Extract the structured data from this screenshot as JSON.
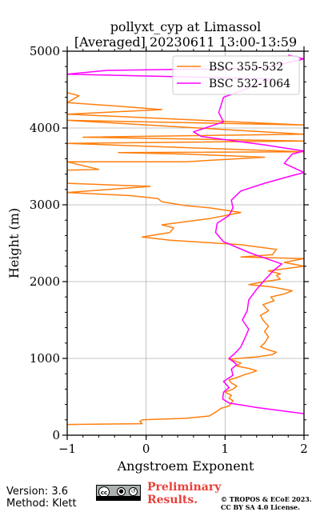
{
  "chart_data": {
    "type": "line",
    "title": "pollyxt_cyp at Limassol",
    "subtitle": "[Averaged] 20230611 13:00-13:59",
    "xlabel": "Angstroem Exponent",
    "ylabel": "Height (m)",
    "xlim": [
      -1,
      2
    ],
    "ylim": [
      0,
      5000
    ],
    "xticks": [
      "−1",
      "0",
      "1",
      "2"
    ],
    "yticks": [
      "0",
      "1000",
      "2000",
      "3000",
      "4000",
      "5000"
    ],
    "grid": true,
    "legend_position": "top-right",
    "series": [
      {
        "name": "BSC 355-532",
        "color": "#ff7f0e",
        "points": [
          [
            -1.0,
            140
          ],
          [
            -0.05,
            150
          ],
          [
            -0.08,
            180
          ],
          [
            -0.05,
            200
          ],
          [
            0.5,
            220
          ],
          [
            0.8,
            250
          ],
          [
            0.88,
            300
          ],
          [
            0.95,
            350
          ],
          [
            1.05,
            380
          ],
          [
            1.08,
            420
          ],
          [
            1.1,
            450
          ],
          [
            1.05,
            480
          ],
          [
            1.08,
            520
          ],
          [
            1.0,
            560
          ],
          [
            1.1,
            600
          ],
          [
            1.15,
            640
          ],
          [
            1.08,
            680
          ],
          [
            1.05,
            720
          ],
          [
            1.15,
            750
          ],
          [
            1.25,
            790
          ],
          [
            1.35,
            820
          ],
          [
            1.4,
            840
          ],
          [
            1.3,
            870
          ],
          [
            1.15,
            900
          ],
          [
            1.2,
            940
          ],
          [
            1.05,
            990
          ],
          [
            1.4,
            1020
          ],
          [
            1.6,
            1050
          ],
          [
            1.65,
            1080
          ],
          [
            1.55,
            1110
          ],
          [
            1.45,
            1150
          ],
          [
            1.5,
            1200
          ],
          [
            1.55,
            1280
          ],
          [
            1.5,
            1350
          ],
          [
            1.55,
            1420
          ],
          [
            1.48,
            1500
          ],
          [
            1.45,
            1560
          ],
          [
            1.55,
            1620
          ],
          [
            1.48,
            1700
          ],
          [
            1.62,
            1750
          ],
          [
            1.58,
            1800
          ],
          [
            1.75,
            1840
          ],
          [
            1.85,
            1880
          ],
          [
            1.6,
            1930
          ],
          [
            1.3,
            1960
          ],
          [
            1.5,
            2000
          ],
          [
            1.7,
            2030
          ],
          [
            1.65,
            2080
          ],
          [
            1.7,
            2100
          ],
          [
            1.55,
            2140
          ],
          [
            2.0,
            2200
          ],
          [
            1.75,
            2250
          ],
          [
            2.0,
            2300
          ],
          [
            1.2,
            2320
          ],
          [
            1.6,
            2350
          ],
          [
            1.65,
            2420
          ],
          [
            1.2,
            2480
          ],
          [
            0.6,
            2520
          ],
          [
            0.3,
            2540
          ],
          [
            -0.05,
            2580
          ],
          [
            0.3,
            2640
          ],
          [
            0.35,
            2700
          ],
          [
            0.2,
            2740
          ],
          [
            0.5,
            2780
          ],
          [
            0.8,
            2820
          ],
          [
            1.2,
            2900
          ],
          [
            0.8,
            2960
          ],
          [
            0.5,
            2990
          ],
          [
            0.2,
            3040
          ],
          [
            0.15,
            3080
          ],
          [
            -0.2,
            3120
          ],
          [
            -1.0,
            3160
          ],
          [
            0.05,
            3240
          ],
          [
            -1.0,
            3280
          ],
          [
            -1.0,
            3450
          ],
          [
            -0.6,
            3460
          ],
          [
            -1.0,
            3560
          ],
          [
            0.5,
            3560
          ],
          [
            1.5,
            3620
          ],
          [
            0.5,
            3660
          ],
          [
            -0.35,
            3680
          ],
          [
            2.0,
            3690
          ],
          [
            -1.0,
            3800
          ],
          [
            2.0,
            3830
          ],
          [
            -0.8,
            3880
          ],
          [
            2.0,
            3920
          ],
          [
            -1.0,
            4100
          ],
          [
            2.0,
            4040
          ],
          [
            -1.0,
            4180
          ],
          [
            0.2,
            4240
          ],
          [
            -0.3,
            4280
          ],
          [
            -1.0,
            4330
          ],
          [
            -0.85,
            4420
          ],
          [
            -1.0,
            4460
          ]
        ]
      },
      {
        "name": "BSC 532-1064",
        "color": "#ff00ff",
        "points": [
          [
            2.0,
            280
          ],
          [
            1.7,
            320
          ],
          [
            1.4,
            360
          ],
          [
            1.05,
            420
          ],
          [
            0.97,
            470
          ],
          [
            0.98,
            560
          ],
          [
            1.05,
            620
          ],
          [
            0.98,
            700
          ],
          [
            1.1,
            780
          ],
          [
            1.08,
            860
          ],
          [
            1.15,
            920
          ],
          [
            1.05,
            1000
          ],
          [
            1.12,
            1060
          ],
          [
            1.2,
            1150
          ],
          [
            1.25,
            1260
          ],
          [
            1.3,
            1380
          ],
          [
            1.22,
            1500
          ],
          [
            1.28,
            1620
          ],
          [
            1.3,
            1760
          ],
          [
            1.4,
            1900
          ],
          [
            1.5,
            2020
          ],
          [
            1.62,
            2150
          ],
          [
            1.72,
            2230
          ],
          [
            1.55,
            2290
          ],
          [
            1.3,
            2380
          ],
          [
            0.98,
            2520
          ],
          [
            0.88,
            2640
          ],
          [
            0.9,
            2760
          ],
          [
            1.05,
            2860
          ],
          [
            1.1,
            2960
          ],
          [
            1.08,
            3060
          ],
          [
            1.2,
            3180
          ],
          [
            1.5,
            3280
          ],
          [
            1.85,
            3380
          ],
          [
            2.0,
            3420
          ],
          [
            1.75,
            3540
          ],
          [
            1.85,
            3660
          ],
          [
            2.0,
            3700
          ],
          [
            1.5,
            3780
          ],
          [
            1.2,
            3820
          ],
          [
            0.7,
            3890
          ],
          [
            0.6,
            3950
          ],
          [
            0.98,
            4080
          ],
          [
            0.92,
            4200
          ],
          [
            0.95,
            4300
          ],
          [
            0.98,
            4400
          ],
          [
            1.3,
            4520
          ],
          [
            1.6,
            4640
          ],
          [
            -1.0,
            4700
          ],
          [
            -0.5,
            4750
          ],
          [
            1.5,
            4780
          ],
          [
            2.0,
            4900
          ],
          [
            1.8,
            4950
          ]
        ]
      }
    ]
  },
  "footer": {
    "version": "Version: 3.6",
    "method": "Method: Klett",
    "preliminary_line1": "Preliminary",
    "preliminary_line2": "Results.",
    "copyright_line1": "© TROPOS & ECoE 2023.",
    "copyright_line2": "CC BY SA 4.0 License."
  },
  "license_badge": {
    "text": "cc",
    "icons": [
      "by-icon",
      "sa-icon"
    ]
  }
}
